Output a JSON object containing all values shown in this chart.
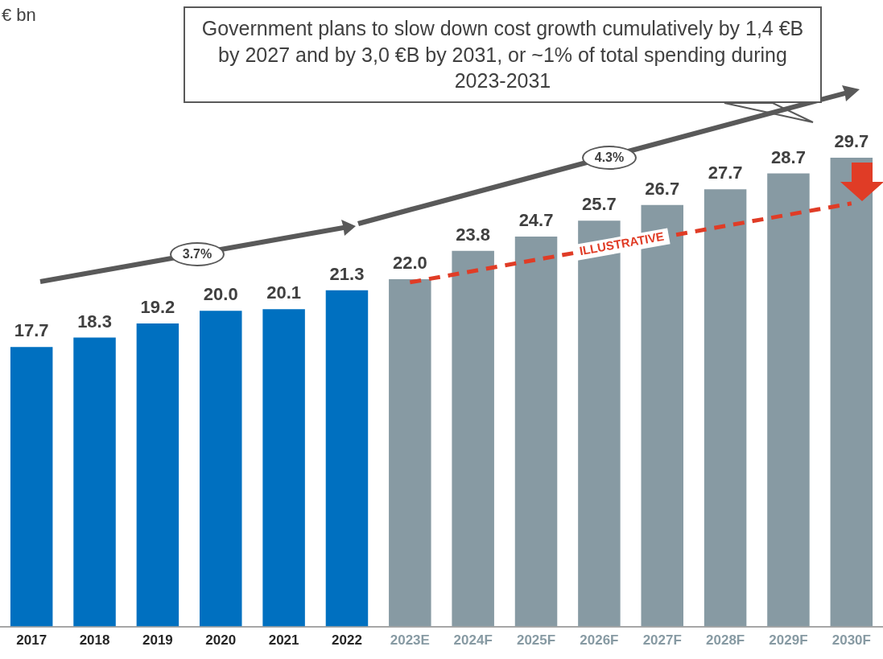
{
  "chart_data": {
    "type": "bar",
    "categories": [
      "2017",
      "2018",
      "2019",
      "2020",
      "2021",
      "2022",
      "2023E",
      "2024F",
      "2025F",
      "2026F",
      "2027F",
      "2028F",
      "2029F",
      "2030F"
    ],
    "series": [
      {
        "colors": [
          "#0070c0",
          "#0070c0",
          "#0070c0",
          "#0070c0",
          "#0070c0",
          "#0070c0",
          "#879aa3",
          "#879aa3",
          "#879aa3",
          "#879aa3",
          "#879aa3",
          "#879aa3",
          "#879aa3",
          "#879aa3"
        ],
        "values": [
          17.7,
          18.3,
          19.2,
          20.0,
          20.1,
          21.3,
          22.0,
          23.8,
          24.7,
          25.7,
          26.7,
          27.7,
          28.7,
          29.7
        ],
        "value_labels": [
          "17.7",
          "18.3",
          "19.2",
          "20.0",
          "20.1",
          "21.3",
          "22.0",
          "23.8",
          "24.7",
          "25.7",
          "26.7",
          "27.7",
          "28.7",
          "29.7"
        ]
      },
      {
        "type": "line",
        "name": "ILLUSTRATIVE",
        "color": "#e03c26",
        "line_style": "dashed",
        "values": [
          null,
          null,
          null,
          null,
          null,
          null,
          21.8,
          null,
          null,
          null,
          null,
          null,
          null,
          26.8
        ]
      }
    ],
    "annotations": [
      "€ bn",
      "Government plans to slow down cost growth cumulatively by 1,4 €B by 2027 and by 3,0 €B by 2031, or ~1% of total spending during 2023-2031",
      "3.7%",
      "4.3%"
    ],
    "legend": false,
    "grid": false,
    "tick_labels": "x",
    "marker": "none"
  }
}
